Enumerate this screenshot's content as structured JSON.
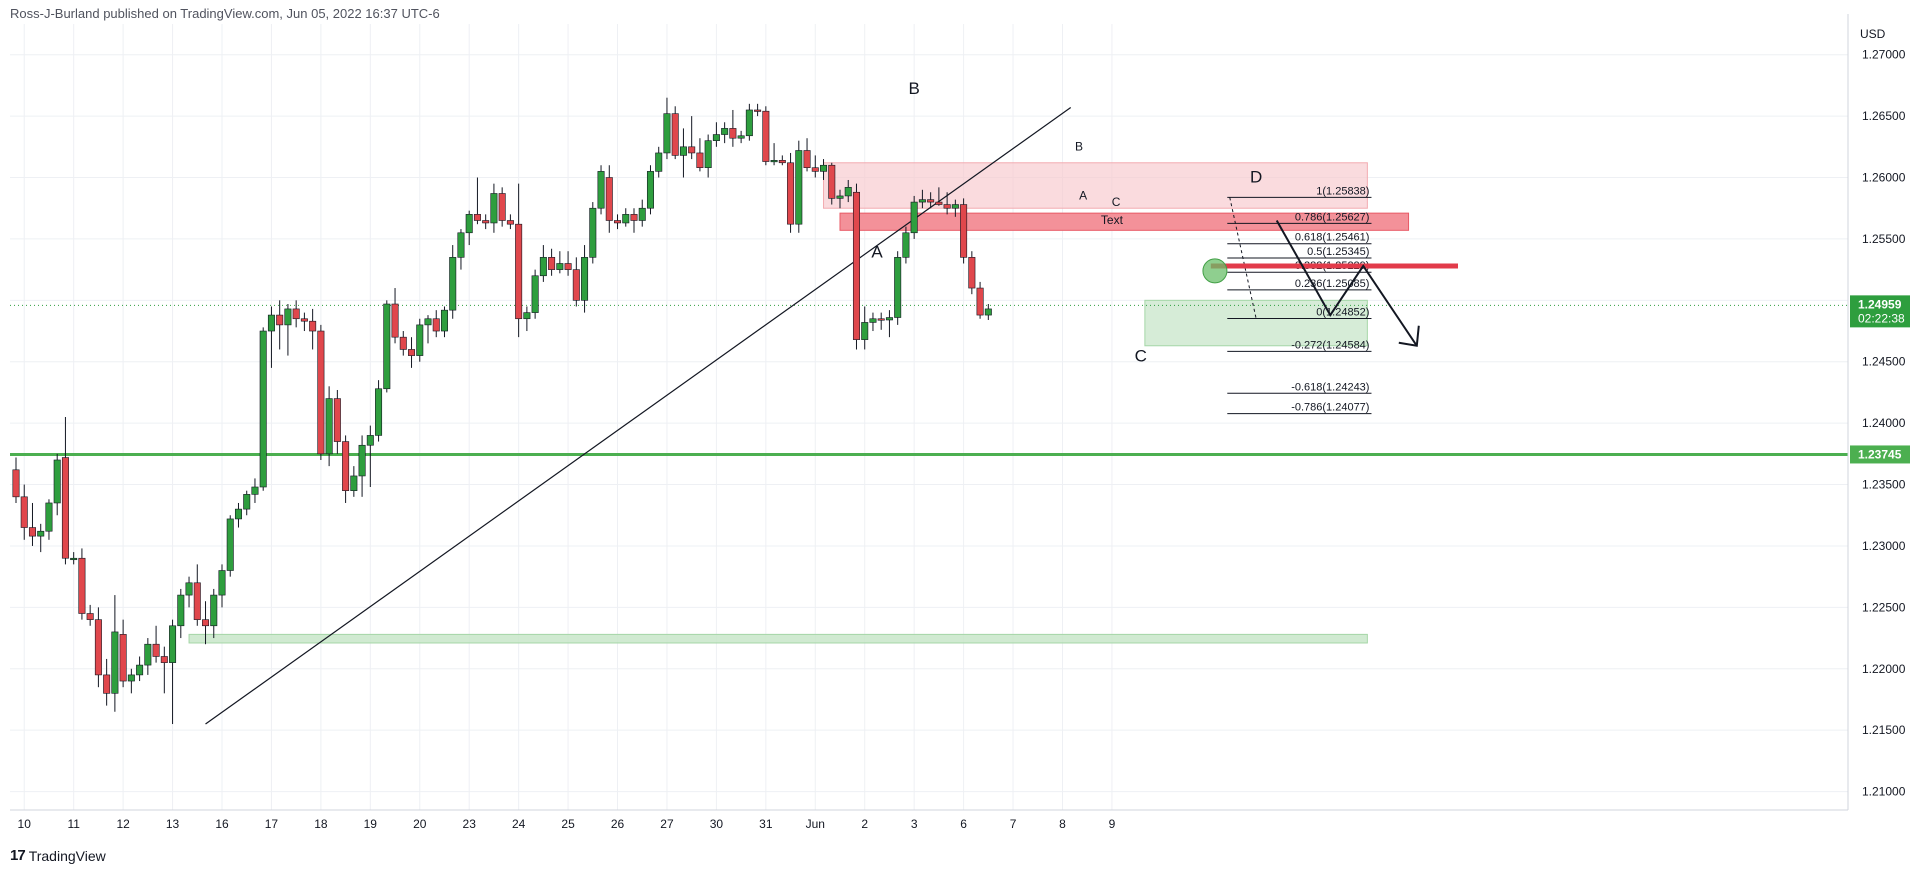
{
  "header": {
    "text": "Ross-J-Burland published on TradingView.com, Jun 05, 2022 16:37 UTC-6"
  },
  "footer": {
    "logo": "17",
    "brand": "TradingView"
  },
  "colors": {
    "up": "#2e9e3e",
    "down": "#e0474c",
    "grid": "#eef0f4",
    "level_green": "#4caf50",
    "price_tag": "#2e9e3e"
  },
  "chart_data": {
    "type": "candlestick",
    "currency_label": "USD",
    "price_axis": [
      "1.27000",
      "1.26500",
      "1.26000",
      "1.25500",
      "1.25000",
      "1.24500",
      "1.24000",
      "1.23500",
      "1.23000",
      "1.22500",
      "1.22000",
      "1.21500",
      "1.21000"
    ],
    "ylim": [
      1.2085,
      1.2725
    ],
    "time_axis": [
      {
        "label": "10",
        "i": 1
      },
      {
        "label": "11",
        "i": 7
      },
      {
        "label": "12",
        "i": 13
      },
      {
        "label": "13",
        "i": 19
      },
      {
        "label": "16",
        "i": 25
      },
      {
        "label": "17",
        "i": 31
      },
      {
        "label": "18",
        "i": 37
      },
      {
        "label": "19",
        "i": 43
      },
      {
        "label": "20",
        "i": 49
      },
      {
        "label": "23",
        "i": 55
      },
      {
        "label": "24",
        "i": 61
      },
      {
        "label": "25",
        "i": 67
      },
      {
        "label": "26",
        "i": 73
      },
      {
        "label": "27",
        "i": 79
      },
      {
        "label": "30",
        "i": 85
      },
      {
        "label": "31",
        "i": 91
      },
      {
        "label": "Jun",
        "i": 97
      },
      {
        "label": "2",
        "i": 103
      },
      {
        "label": "3",
        "i": 109
      },
      {
        "label": "6",
        "i": 115
      },
      {
        "label": "7",
        "i": 121
      },
      {
        "label": "8",
        "i": 127
      },
      {
        "label": "9",
        "i": 133
      }
    ],
    "candles": [
      [
        1.2362,
        1.2372,
        1.2335,
        1.234
      ],
      [
        1.234,
        1.235,
        1.2305,
        1.2315
      ],
      [
        1.2315,
        1.2335,
        1.23,
        1.2308
      ],
      [
        1.2308,
        1.2318,
        1.2295,
        1.2312
      ],
      [
        1.2312,
        1.2338,
        1.2305,
        1.2335
      ],
      [
        1.2335,
        1.2375,
        1.2325,
        1.237
      ],
      [
        1.2372,
        1.2405,
        1.2285,
        1.229
      ],
      [
        1.229,
        1.2295,
        1.2285,
        1.229
      ],
      [
        1.229,
        1.2298,
        1.224,
        1.2245
      ],
      [
        1.2245,
        1.2252,
        1.2235,
        1.224
      ],
      [
        1.224,
        1.225,
        1.2185,
        1.2195
      ],
      [
        1.2195,
        1.2208,
        1.217,
        1.218
      ],
      [
        1.218,
        1.226,
        1.2165,
        1.223
      ],
      [
        1.2228,
        1.224,
        1.2185,
        1.219
      ],
      [
        1.219,
        1.22,
        1.218,
        1.2195
      ],
      [
        1.2195,
        1.221,
        1.219,
        1.2203
      ],
      [
        1.2203,
        1.2225,
        1.2195,
        1.222
      ],
      [
        1.222,
        1.2235,
        1.2205,
        1.221
      ],
      [
        1.221,
        1.2218,
        1.218,
        1.2205
      ],
      [
        1.2205,
        1.224,
        1.2155,
        1.2235
      ],
      [
        1.2235,
        1.2265,
        1.2225,
        1.226
      ],
      [
        1.226,
        1.2275,
        1.225,
        1.227
      ],
      [
        1.227,
        1.2285,
        1.2235,
        1.224
      ],
      [
        1.224,
        1.2255,
        1.222,
        1.2235
      ],
      [
        1.2235,
        1.2265,
        1.2225,
        1.226
      ],
      [
        1.226,
        1.2285,
        1.225,
        1.228
      ],
      [
        1.228,
        1.2325,
        1.2275,
        1.2322
      ],
      [
        1.2322,
        1.2335,
        1.2315,
        1.233
      ],
      [
        1.233,
        1.2345,
        1.2325,
        1.2342
      ],
      [
        1.2342,
        1.2355,
        1.2335,
        1.2348
      ],
      [
        1.2348,
        1.2478,
        1.2345,
        1.2475
      ],
      [
        1.2475,
        1.2495,
        1.2445,
        1.2488
      ],
      [
        1.2488,
        1.25,
        1.246,
        1.248
      ],
      [
        1.248,
        1.2497,
        1.2455,
        1.2493
      ],
      [
        1.2493,
        1.25,
        1.2478,
        1.2485
      ],
      [
        1.2485,
        1.249,
        1.2475,
        1.2483
      ],
      [
        1.2483,
        1.2493,
        1.246,
        1.2475
      ],
      [
        1.2475,
        1.248,
        1.237,
        1.2375
      ],
      [
        1.2375,
        1.243,
        1.2365,
        1.242
      ],
      [
        1.242,
        1.2427,
        1.2375,
        1.2385
      ],
      [
        1.2385,
        1.239,
        1.2335,
        1.2345
      ],
      [
        1.2345,
        1.2365,
        1.234,
        1.2357
      ],
      [
        1.2357,
        1.239,
        1.234,
        1.2382
      ],
      [
        1.2382,
        1.2398,
        1.2348,
        1.239
      ],
      [
        1.239,
        1.2435,
        1.2385,
        1.2428
      ],
      [
        1.2428,
        1.25,
        1.2425,
        1.2497
      ],
      [
        1.2497,
        1.251,
        1.2465,
        1.247
      ],
      [
        1.247,
        1.2475,
        1.2455,
        1.246
      ],
      [
        1.246,
        1.247,
        1.2445,
        1.2455
      ],
      [
        1.2455,
        1.2485,
        1.245,
        1.248
      ],
      [
        1.248,
        1.2488,
        1.2465,
        1.2485
      ],
      [
        1.2485,
        1.2492,
        1.247,
        1.2475
      ],
      [
        1.2475,
        1.2495,
        1.247,
        1.2492
      ],
      [
        1.2492,
        1.2545,
        1.2485,
        1.2535
      ],
      [
        1.2535,
        1.2558,
        1.2525,
        1.2555
      ],
      [
        1.2555,
        1.2573,
        1.2545,
        1.257
      ],
      [
        1.257,
        1.26,
        1.2562,
        1.2565
      ],
      [
        1.2565,
        1.257,
        1.2558,
        1.2563
      ],
      [
        1.2563,
        1.2595,
        1.2555,
        1.2587
      ],
      [
        1.2587,
        1.2592,
        1.256,
        1.2565
      ],
      [
        1.2565,
        1.257,
        1.2558,
        1.2562
      ],
      [
        1.2562,
        1.2595,
        1.247,
        1.2485
      ],
      [
        1.2485,
        1.2495,
        1.2475,
        1.249
      ],
      [
        1.249,
        1.2525,
        1.2485,
        1.252
      ],
      [
        1.252,
        1.2545,
        1.2515,
        1.2535
      ],
      [
        1.2535,
        1.2542,
        1.252,
        1.2525
      ],
      [
        1.2525,
        1.254,
        1.2522,
        1.253
      ],
      [
        1.253,
        1.254,
        1.252,
        1.2525
      ],
      [
        1.2525,
        1.2535,
        1.2495,
        1.25
      ],
      [
        1.25,
        1.2545,
        1.249,
        1.2535
      ],
      [
        1.2535,
        1.258,
        1.253,
        1.2575
      ],
      [
        1.2575,
        1.261,
        1.257,
        1.2605
      ],
      [
        1.26,
        1.261,
        1.2555,
        1.2565
      ],
      [
        1.2565,
        1.257,
        1.2558,
        1.2563
      ],
      [
        1.2563,
        1.2575,
        1.256,
        1.257
      ],
      [
        1.257,
        1.2575,
        1.2555,
        1.2565
      ],
      [
        1.2565,
        1.2582,
        1.256,
        1.2575
      ],
      [
        1.2575,
        1.261,
        1.257,
        1.2605
      ],
      [
        1.2605,
        1.2625,
        1.26,
        1.262
      ],
      [
        1.262,
        1.2665,
        1.2615,
        1.2652
      ],
      [
        1.2652,
        1.2658,
        1.2615,
        1.2618
      ],
      [
        1.2618,
        1.264,
        1.26,
        1.2625
      ],
      [
        1.2625,
        1.265,
        1.2615,
        1.262
      ],
      [
        1.262,
        1.2632,
        1.2605,
        1.2608
      ],
      [
        1.2608,
        1.2635,
        1.26,
        1.263
      ],
      [
        1.263,
        1.2645,
        1.2625,
        1.2635
      ],
      [
        1.2635,
        1.2645,
        1.2628,
        1.264
      ],
      [
        1.264,
        1.2655,
        1.2625,
        1.2632
      ],
      [
        1.2632,
        1.2638,
        1.2628,
        1.2634
      ],
      [
        1.2634,
        1.266,
        1.263,
        1.2655
      ],
      [
        1.2655,
        1.266,
        1.265,
        1.2654
      ],
      [
        1.2654,
        1.2658,
        1.261,
        1.2613
      ],
      [
        1.2613,
        1.2628,
        1.261,
        1.2614
      ],
      [
        1.2614,
        1.2618,
        1.261,
        1.2612
      ],
      [
        1.2612,
        1.262,
        1.2555,
        1.2562
      ],
      [
        1.2562,
        1.263,
        1.2555,
        1.2622
      ],
      [
        1.2622,
        1.2632,
        1.2605,
        1.2608
      ],
      [
        1.2608,
        1.2618,
        1.26,
        1.2605
      ],
      [
        1.2605,
        1.2615,
        1.2598,
        1.261
      ],
      [
        1.261,
        1.2612,
        1.2578,
        1.2583
      ],
      [
        1.2583,
        1.259,
        1.2575,
        1.2585
      ],
      [
        1.2585,
        1.2598,
        1.258,
        1.2592
      ],
      [
        1.2588,
        1.2595,
        1.246,
        1.2468
      ],
      [
        1.2468,
        1.2495,
        1.246,
        1.2482
      ],
      [
        1.2482,
        1.249,
        1.2475,
        1.2485
      ],
      [
        1.2485,
        1.249,
        1.2476,
        1.2484
      ],
      [
        1.2484,
        1.2492,
        1.247,
        1.2486
      ],
      [
        1.2486,
        1.254,
        1.248,
        1.2535
      ],
      [
        1.2535,
        1.256,
        1.253,
        1.2555
      ],
      [
        1.2555,
        1.2585,
        1.255,
        1.258
      ],
      [
        1.258,
        1.259,
        1.2575,
        1.2582
      ],
      [
        1.2582,
        1.2588,
        1.2575,
        1.258
      ],
      [
        1.258,
        1.2592,
        1.2577,
        1.2578
      ],
      [
        1.2578,
        1.2588,
        1.257,
        1.2575
      ],
      [
        1.2575,
        1.2582,
        1.2568,
        1.2578
      ],
      [
        1.2578,
        1.2583,
        1.253,
        1.2535
      ],
      [
        1.2535,
        1.254,
        1.2505,
        1.251
      ],
      [
        1.251,
        1.2515,
        1.2485,
        1.2488
      ],
      [
        1.2488,
        1.2497,
        1.2484,
        1.2493
      ]
    ],
    "current_price": {
      "value": 1.24959,
      "label": "1.24959",
      "countdown": "02:22:38"
    },
    "horizontal_level": {
      "value": 1.23745,
      "label": "1.23745"
    },
    "fib_levels": [
      {
        "label": "1(1.25838)",
        "value": 1.25838
      },
      {
        "label": "0.786(1.25627)",
        "value": 1.25627
      },
      {
        "label": "0.618(1.25461)",
        "value": 1.25461
      },
      {
        "label": "0.5(1.25345)",
        "value": 1.25345
      },
      {
        "label": "0.382(1.25229)",
        "value": 1.25229
      },
      {
        "label": "0.236(1.25085)",
        "value": 1.25085
      },
      {
        "label": "0(1.24852)",
        "value": 1.24852
      },
      {
        "label": "-0.272(1.24584)",
        "value": 1.24584
      },
      {
        "label": "-0.618(1.24243)",
        "value": 1.24243
      },
      {
        "label": "-0.786(1.24077)",
        "value": 1.24077
      }
    ],
    "zones": [
      {
        "kind": "supply-light",
        "i0": 98,
        "i1": 164,
        "top": 1.2612,
        "bottom": 1.2575
      },
      {
        "kind": "supply-strong",
        "i0": 100,
        "i1": 169,
        "top": 1.2571,
        "bottom": 1.2557
      },
      {
        "kind": "demand-light",
        "i0": 137,
        "i1": 164,
        "top": 1.25,
        "bottom": 1.2463
      },
      {
        "kind": "demand-low",
        "i0": 21,
        "i1": 164,
        "top": 1.2228,
        "bottom": 1.2221
      }
    ],
    "red_level": {
      "i0": 145,
      "i1": 175,
      "value": 1.2528
    },
    "trendline": {
      "x0": 23,
      "y0": 1.2155,
      "x1": 128,
      "y1": 1.2657
    },
    "projection": [
      [
        153,
        1.2565
      ],
      [
        159.5,
        1.2488
      ],
      [
        163.5,
        1.2528
      ],
      [
        170,
        1.2463
      ]
    ],
    "annotations": [
      {
        "text": "B",
        "i": 109,
        "price": 1.2668,
        "size": "large"
      },
      {
        "text": "A",
        "i": 104.5,
        "price": 1.2535,
        "size": "large"
      },
      {
        "text": "C",
        "i": 136.5,
        "price": 1.245,
        "size": "large"
      },
      {
        "text": "D",
        "i": 150.5,
        "price": 1.2596,
        "size": "large"
      },
      {
        "text": "B",
        "i": 129,
        "price": 1.2622,
        "size": "small"
      },
      {
        "text": "A",
        "i": 129.5,
        "price": 1.2582,
        "size": "small"
      },
      {
        "text": "C",
        "i": 133.5,
        "price": 1.2577,
        "size": "small"
      },
      {
        "text": "Text",
        "i": 133,
        "price": 1.2562,
        "size": "small"
      }
    ],
    "marker_circle": {
      "i": 145.5,
      "price": 1.2524
    }
  }
}
